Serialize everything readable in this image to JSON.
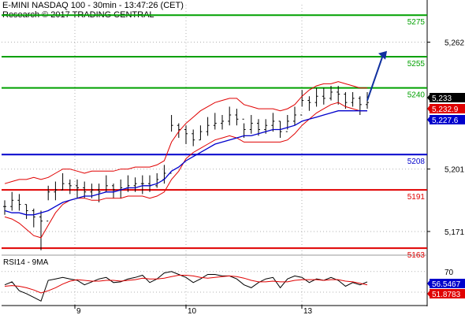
{
  "header": {
    "title": "E-MINI NASDAQ 100 - 30min - 13:47:26 (CET)",
    "subtitle": "Research © 2017 TRADING CENTRAL"
  },
  "colors": {
    "resistance": "#00a000",
    "pivot": "#0000cc",
    "support": "#e00000",
    "price": "#000000",
    "bollinger": "#e00000",
    "ma": "#0000cc",
    "arrow": "#1030a0"
  },
  "chart_data": [
    {
      "type": "line",
      "title": "E-MINI NASDAQ 100 - 30min",
      "ylim": [
        5160,
        5280
      ],
      "y_ticks": [
        "5,262",
        "5,201",
        "5,171"
      ],
      "x_ticks": [
        "9",
        "10",
        "13"
      ],
      "levels": [
        {
          "value": 5275,
          "label": "5275",
          "kind": "resistance"
        },
        {
          "value": 5255,
          "label": "5255",
          "kind": "resistance"
        },
        {
          "value": 5240,
          "label": "5240",
          "kind": "resistance"
        },
        {
          "value": 5208,
          "label": "5208",
          "kind": "pivot"
        },
        {
          "value": 5191,
          "label": "5191",
          "kind": "support"
        },
        {
          "value": 5163,
          "label": "5163",
          "kind": "support"
        }
      ],
      "price_tags": [
        {
          "label": "5,233",
          "kind": "price"
        },
        {
          "label": "5,232.9",
          "kind": "bollinger"
        },
        {
          "label": "5,227.6",
          "kind": "ma"
        }
      ],
      "series": [
        {
          "values": [
            5183,
            5186,
            5184,
            5181,
            5178,
            5176,
            5190,
            5191,
            5194,
            5193,
            5192,
            5190,
            5191,
            5190,
            5193,
            5191,
            5192,
            5193,
            5194,
            5194,
            5193,
            5196,
            5199,
            5222,
            5220,
            5218,
            5215,
            5219,
            5222,
            5223,
            5224,
            5227,
            5225,
            5220,
            5223,
            5220,
            5222,
            5224,
            5219,
            5224,
            5227,
            5234,
            5233,
            5236,
            5235,
            5238,
            5237,
            5233,
            5235,
            5232,
            5233
          ]
        },
        {
          "values": [
            5194,
            5195,
            5196,
            5196,
            5197,
            5196,
            5197,
            5199,
            5201,
            5201,
            5200,
            5199,
            5200,
            5200,
            5200,
            5200,
            5201,
            5201,
            5202,
            5202,
            5202,
            5203,
            5205,
            5214,
            5219,
            5223,
            5226,
            5229,
            5231,
            5233,
            5234,
            5235,
            5235,
            5232,
            5231,
            5230,
            5230,
            5230,
            5229,
            5230,
            5232,
            5236,
            5239,
            5241,
            5242,
            5242,
            5243,
            5242,
            5241,
            5240,
            5240
          ]
        },
        {
          "values": [
            5178,
            5177,
            5175,
            5172,
            5169,
            5168,
            5174,
            5180,
            5184,
            5186,
            5187,
            5187,
            5186,
            5186,
            5187,
            5187,
            5187,
            5188,
            5188,
            5188,
            5187,
            5188,
            5190,
            5196,
            5200,
            5206,
            5209,
            5211,
            5213,
            5215,
            5216,
            5217,
            5216,
            5214,
            5214,
            5214,
            5214,
            5214,
            5214,
            5215,
            5218,
            5222,
            5225,
            5228,
            5230,
            5232,
            5233,
            5231,
            5230,
            5229,
            5229
          ]
        },
        {
          "values": [
            5181,
            5180,
            5180,
            5179,
            5179,
            5180,
            5181,
            5183,
            5185,
            5186,
            5187,
            5188,
            5188,
            5189,
            5190,
            5190,
            5191,
            5192,
            5192,
            5193,
            5193,
            5194,
            5196,
            5200,
            5202,
            5205,
            5207,
            5209,
            5211,
            5213,
            5214,
            5215,
            5216,
            5217,
            5217,
            5218,
            5219,
            5220,
            5220,
            5221,
            5222,
            5224,
            5225,
            5226,
            5227,
            5228,
            5229,
            5229,
            5229,
            5229,
            5229
          ]
        }
      ]
    },
    {
      "type": "line",
      "title": "RSI14 - 9MA",
      "y_ticks": [
        "70"
      ],
      "value_tags": [
        "56.5467",
        "51.8783"
      ],
      "series": [
        {
          "values": [
            52,
            56,
            44,
            40,
            35,
            30,
            58,
            60,
            62,
            60,
            58,
            52,
            56,
            60,
            62,
            55,
            56,
            60,
            62,
            65,
            55,
            60,
            68,
            70,
            66,
            62,
            55,
            60,
            66,
            66,
            64,
            64,
            60,
            52,
            48,
            55,
            60,
            62,
            48,
            60,
            64,
            62,
            55,
            60,
            58,
            62,
            58,
            50,
            55,
            52,
            56
          ]
        },
        {
          "values": [
            50,
            51,
            50,
            48,
            45,
            41,
            44,
            48,
            53,
            57,
            59,
            58,
            57,
            57,
            58,
            58,
            57,
            58,
            59,
            61,
            60,
            60,
            61,
            63,
            65,
            65,
            64,
            62,
            61,
            62,
            63,
            64,
            63,
            61,
            58,
            56,
            56,
            57,
            56,
            56,
            58,
            59,
            59,
            59,
            58,
            59,
            59,
            57,
            56,
            54,
            52
          ]
        }
      ]
    }
  ]
}
